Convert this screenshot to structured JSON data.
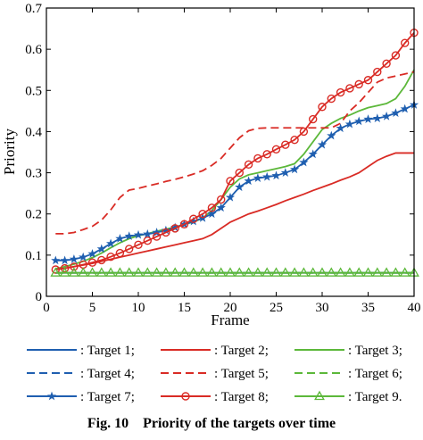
{
  "caption": {
    "label": "Fig. 10",
    "text": "Priority of the targets over time"
  },
  "chart_data": {
    "type": "line",
    "xlabel": "Frame",
    "ylabel": "Priority",
    "xlim": [
      0,
      40
    ],
    "ylim": [
      0,
      0.7
    ],
    "xticks": [
      0,
      5,
      10,
      15,
      20,
      25,
      30,
      35,
      40
    ],
    "yticks": [
      0,
      0.1,
      0.2,
      0.3,
      0.4,
      0.5,
      0.6,
      0.7
    ],
    "ytick_labels": [
      "0",
      "0.1",
      "0.2",
      "0.3",
      "0.4",
      "0.5",
      "0.6",
      "0.7"
    ],
    "grid": false,
    "legend_position": "below",
    "series": [
      {
        "name": "Target 1",
        "legend_label": ": Target 1;",
        "color": "#1f5fb0",
        "dash": "solid",
        "marker": "none",
        "x": [
          1,
          2,
          3,
          4,
          5,
          6,
          7,
          8,
          9,
          10,
          11,
          12,
          13,
          14,
          15,
          16,
          17,
          18,
          19,
          20,
          21,
          22,
          23,
          24,
          25,
          26,
          27,
          28,
          29,
          30,
          31,
          32,
          33,
          34,
          35,
          36,
          37,
          38,
          39,
          40
        ],
        "y": [
          0.057,
          0.057,
          0.057,
          0.057,
          0.057,
          0.057,
          0.057,
          0.057,
          0.057,
          0.057,
          0.057,
          0.057,
          0.057,
          0.057,
          0.057,
          0.057,
          0.057,
          0.057,
          0.057,
          0.057,
          0.057,
          0.057,
          0.057,
          0.057,
          0.057,
          0.057,
          0.057,
          0.057,
          0.057,
          0.057,
          0.057,
          0.057,
          0.057,
          0.057,
          0.057,
          0.057,
          0.057,
          0.057,
          0.057,
          0.057
        ]
      },
      {
        "name": "Target 2",
        "legend_label": ": Target 2;",
        "color": "#d92b25",
        "dash": "solid",
        "marker": "none",
        "x": [
          1,
          2,
          3,
          4,
          5,
          6,
          7,
          8,
          9,
          10,
          11,
          12,
          13,
          14,
          15,
          16,
          17,
          18,
          19,
          20,
          21,
          22,
          23,
          24,
          25,
          26,
          27,
          28,
          29,
          30,
          31,
          32,
          33,
          34,
          35,
          36,
          37,
          38,
          39,
          40
        ],
        "y": [
          0.065,
          0.068,
          0.072,
          0.076,
          0.08,
          0.085,
          0.09,
          0.095,
          0.1,
          0.105,
          0.11,
          0.115,
          0.12,
          0.125,
          0.13,
          0.135,
          0.14,
          0.15,
          0.165,
          0.18,
          0.19,
          0.2,
          0.207,
          0.215,
          0.223,
          0.232,
          0.24,
          0.248,
          0.257,
          0.265,
          0.273,
          0.282,
          0.29,
          0.3,
          0.315,
          0.33,
          0.34,
          0.348,
          0.348,
          0.348
        ]
      },
      {
        "name": "Target 3",
        "legend_label": ": Target 3;",
        "color": "#5cb83a",
        "dash": "solid",
        "marker": "none",
        "x": [
          1,
          2,
          3,
          4,
          5,
          6,
          7,
          8,
          9,
          10,
          11,
          12,
          13,
          14,
          15,
          16,
          17,
          18,
          19,
          20,
          21,
          22,
          23,
          24,
          25,
          26,
          27,
          28,
          29,
          30,
          31,
          32,
          33,
          34,
          35,
          36,
          37,
          38,
          39,
          40
        ],
        "y": [
          0.067,
          0.072,
          0.078,
          0.085,
          0.094,
          0.105,
          0.118,
          0.13,
          0.14,
          0.147,
          0.152,
          0.158,
          0.163,
          0.168,
          0.175,
          0.18,
          0.19,
          0.208,
          0.235,
          0.265,
          0.285,
          0.295,
          0.3,
          0.305,
          0.31,
          0.315,
          0.322,
          0.345,
          0.375,
          0.405,
          0.42,
          0.432,
          0.44,
          0.45,
          0.458,
          0.463,
          0.468,
          0.48,
          0.51,
          0.55
        ]
      },
      {
        "name": "Target 4",
        "legend_label": ": Target 4;",
        "color": "#1f5fb0",
        "dash": "dashed",
        "marker": "none",
        "x": [
          1,
          2,
          3,
          4,
          5,
          6,
          7,
          8,
          9,
          10,
          11,
          12,
          13,
          14,
          15,
          16,
          17,
          18,
          19,
          20,
          21,
          22,
          23,
          24,
          25,
          26,
          27,
          28,
          29,
          30,
          31,
          32,
          33,
          34,
          35,
          36,
          37,
          38,
          39,
          40
        ],
        "y": [
          0.057,
          0.057,
          0.057,
          0.057,
          0.057,
          0.057,
          0.057,
          0.057,
          0.057,
          0.057,
          0.057,
          0.057,
          0.057,
          0.057,
          0.057,
          0.057,
          0.057,
          0.057,
          0.057,
          0.057,
          0.057,
          0.057,
          0.057,
          0.057,
          0.057,
          0.057,
          0.057,
          0.057,
          0.057,
          0.057,
          0.057,
          0.057,
          0.057,
          0.057,
          0.057,
          0.057,
          0.057,
          0.057,
          0.057,
          0.057
        ]
      },
      {
        "name": "Target 5",
        "legend_label": ": Target 5;",
        "color": "#d92b25",
        "dash": "dashed",
        "marker": "none",
        "x": [
          1,
          2,
          3,
          4,
          5,
          6,
          7,
          8,
          9,
          10,
          11,
          12,
          13,
          14,
          15,
          16,
          17,
          18,
          19,
          20,
          21,
          22,
          23,
          24,
          25,
          26,
          27,
          28,
          29,
          30,
          31,
          32,
          33,
          34,
          35,
          36,
          37,
          38,
          39,
          40
        ],
        "y": [
          0.152,
          0.152,
          0.155,
          0.162,
          0.17,
          0.185,
          0.21,
          0.24,
          0.258,
          0.262,
          0.268,
          0.273,
          0.279,
          0.284,
          0.29,
          0.297,
          0.305,
          0.318,
          0.335,
          0.36,
          0.385,
          0.402,
          0.408,
          0.409,
          0.409,
          0.409,
          0.409,
          0.409,
          0.409,
          0.409,
          0.409,
          0.42,
          0.45,
          0.47,
          0.495,
          0.52,
          0.53,
          0.535,
          0.54,
          0.545
        ]
      },
      {
        "name": "Target 6",
        "legend_label": ": Target 6;",
        "color": "#5cb83a",
        "dash": "dashed",
        "marker": "none",
        "x": [
          1,
          2,
          3,
          4,
          5,
          6,
          7,
          8,
          9,
          10,
          11,
          12,
          13,
          14,
          15,
          16,
          17,
          18,
          19,
          20,
          21,
          22,
          23,
          24,
          25,
          26,
          27,
          28,
          29,
          30,
          31,
          32,
          33,
          34,
          35,
          36,
          37,
          38,
          39,
          40
        ],
        "y": [
          0.057,
          0.057,
          0.057,
          0.057,
          0.057,
          0.057,
          0.057,
          0.057,
          0.057,
          0.057,
          0.057,
          0.057,
          0.057,
          0.057,
          0.057,
          0.057,
          0.057,
          0.057,
          0.057,
          0.057,
          0.057,
          0.057,
          0.057,
          0.057,
          0.057,
          0.057,
          0.057,
          0.057,
          0.057,
          0.057,
          0.057,
          0.057,
          0.057,
          0.057,
          0.057,
          0.057,
          0.057,
          0.057,
          0.057,
          0.057
        ]
      },
      {
        "name": "Target 7",
        "legend_label": ": Target 7;",
        "color": "#1f5fb0",
        "dash": "solid",
        "marker": "star",
        "x": [
          1,
          2,
          3,
          4,
          5,
          6,
          7,
          8,
          9,
          10,
          11,
          12,
          13,
          14,
          15,
          16,
          17,
          18,
          19,
          20,
          21,
          22,
          23,
          24,
          25,
          26,
          27,
          28,
          29,
          30,
          31,
          32,
          33,
          34,
          35,
          36,
          37,
          38,
          39,
          40
        ],
        "y": [
          0.087,
          0.087,
          0.09,
          0.095,
          0.103,
          0.115,
          0.128,
          0.14,
          0.146,
          0.149,
          0.151,
          0.155,
          0.16,
          0.167,
          0.175,
          0.182,
          0.19,
          0.2,
          0.215,
          0.24,
          0.265,
          0.28,
          0.287,
          0.29,
          0.293,
          0.3,
          0.308,
          0.325,
          0.345,
          0.368,
          0.39,
          0.408,
          0.418,
          0.425,
          0.43,
          0.432,
          0.437,
          0.445,
          0.455,
          0.465
        ]
      },
      {
        "name": "Target 8",
        "legend_label": ": Target 8;",
        "color": "#d92b25",
        "dash": "solid",
        "marker": "circle",
        "x": [
          1,
          2,
          3,
          4,
          5,
          6,
          7,
          8,
          9,
          10,
          11,
          12,
          13,
          14,
          15,
          16,
          17,
          18,
          19,
          20,
          21,
          22,
          23,
          24,
          25,
          26,
          27,
          28,
          29,
          30,
          31,
          32,
          33,
          34,
          35,
          36,
          37,
          38,
          39,
          40
        ],
        "y": [
          0.065,
          0.068,
          0.072,
          0.077,
          0.082,
          0.088,
          0.096,
          0.105,
          0.115,
          0.125,
          0.135,
          0.145,
          0.155,
          0.165,
          0.175,
          0.188,
          0.2,
          0.215,
          0.235,
          0.28,
          0.3,
          0.32,
          0.335,
          0.345,
          0.357,
          0.368,
          0.38,
          0.4,
          0.43,
          0.46,
          0.48,
          0.495,
          0.505,
          0.515,
          0.525,
          0.545,
          0.565,
          0.585,
          0.615,
          0.64
        ]
      },
      {
        "name": "Target 9",
        "legend_label": ": Target 9.",
        "color": "#5cb83a",
        "dash": "solid",
        "marker": "triangle",
        "x": [
          1,
          2,
          3,
          4,
          5,
          6,
          7,
          8,
          9,
          10,
          11,
          12,
          13,
          14,
          15,
          16,
          17,
          18,
          19,
          20,
          21,
          22,
          23,
          24,
          25,
          26,
          27,
          28,
          29,
          30,
          31,
          32,
          33,
          34,
          35,
          36,
          37,
          38,
          39,
          40
        ],
        "y": [
          0.057,
          0.057,
          0.057,
          0.057,
          0.057,
          0.057,
          0.057,
          0.057,
          0.057,
          0.057,
          0.057,
          0.057,
          0.057,
          0.057,
          0.057,
          0.057,
          0.057,
          0.057,
          0.057,
          0.057,
          0.057,
          0.057,
          0.057,
          0.057,
          0.057,
          0.057,
          0.057,
          0.057,
          0.057,
          0.057,
          0.057,
          0.057,
          0.057,
          0.057,
          0.057,
          0.057,
          0.057,
          0.057,
          0.057,
          0.057
        ]
      }
    ]
  }
}
